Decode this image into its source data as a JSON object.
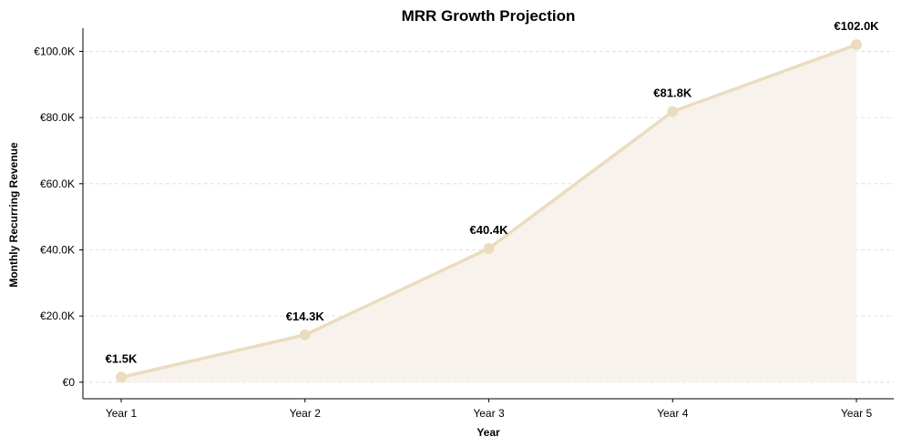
{
  "colors": {
    "line": "#ebdcc0",
    "fill": "#f7f2ec",
    "grid": "#d9d9d9"
  },
  "chart_data": {
    "type": "line",
    "title": "MRR Growth Projection",
    "xlabel": "Year",
    "ylabel": "Monthly Recurring Revenue",
    "categories": [
      "Year 1",
      "Year 2",
      "Year 3",
      "Year 4",
      "Year 5"
    ],
    "values": [
      1500,
      14300,
      40400,
      81800,
      102000
    ],
    "data_labels": [
      "€1.5K",
      "€14.3K",
      "€40.4K",
      "€81.8K",
      "€102.0K"
    ],
    "ylim": [
      -5000,
      107000
    ],
    "yticks": [
      0,
      20000,
      40000,
      60000,
      80000,
      100000
    ],
    "ytick_labels": [
      "€0",
      "€20.0K",
      "€40.0K",
      "€60.0K",
      "€80.0K",
      "€100.0K"
    ],
    "grid": "horizontal dashed",
    "area_fill": true
  }
}
